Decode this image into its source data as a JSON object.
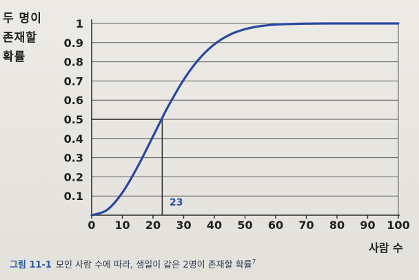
{
  "chart_data": {
    "type": "line",
    "ylabel_lines": [
      "두 명이",
      "존재할",
      "확률"
    ],
    "xlabel": "사람 수",
    "xlim": [
      0,
      100
    ],
    "ylim": [
      0,
      1
    ],
    "xticks": [
      "0",
      "10",
      "20",
      "30",
      "40",
      "50",
      "60",
      "70",
      "80",
      "90",
      "100"
    ],
    "yticks": [
      "0.1",
      "0.2",
      "0.3",
      "0.4",
      "0.5",
      "0.6",
      "0.7",
      "0.8",
      "0.9",
      "1"
    ],
    "grid": true,
    "annotation": {
      "x": 23,
      "y": 0.5,
      "label": "23"
    },
    "series": [
      {
        "color": "#2847a0",
        "x": [
          0,
          5,
          10,
          15,
          20,
          23,
          25,
          30,
          35,
          40,
          45,
          50,
          55,
          60,
          70,
          80,
          90,
          100
        ],
        "y": [
          0,
          0.027,
          0.117,
          0.253,
          0.411,
          0.507,
          0.569,
          0.706,
          0.814,
          0.891,
          0.941,
          0.97,
          0.986,
          0.994,
          0.999,
          1.0,
          1.0,
          1.0
        ]
      }
    ]
  },
  "caption": {
    "figure": "그림 11-1",
    "text": "모인 사람 수에 따라, 생일이 같은 2명이 존재할 확률",
    "note": "7"
  }
}
